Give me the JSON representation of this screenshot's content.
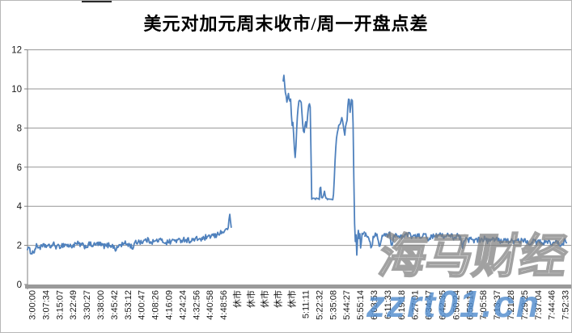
{
  "window": {
    "background": "#ffffff",
    "border_color": "#b7b7b7"
  },
  "title": "美元对加元周末收市/周一开盘点差",
  "watermarks": {
    "brand_cn": "海马财经",
    "brand_url": "zzrt01.cn"
  },
  "chart_data": {
    "type": "line",
    "title": "美元对加元周末收市/周一开盘点差",
    "xlabel": "",
    "ylabel": "",
    "ylim": [
      0,
      12
    ],
    "yticks": [
      0,
      2,
      4,
      6,
      8,
      10,
      12
    ],
    "grid": "horizontal-major",
    "legend_position": "none",
    "line_color": "#4f81bd",
    "gridline_color": "#969696",
    "axis_color": "#808080",
    "zero_axis_bar_color": "#9a9a9a",
    "tick_label_color": "#1a1a1a",
    "closed_market_label": "休市",
    "categories": [
      "3:00:00",
      "3:07:34",
      "3:15:07",
      "3:22:49",
      "3:30:27",
      "3:38:00",
      "3:45:42",
      "3:53:12",
      "4:00:47",
      "4:08:26",
      "4:16:09",
      "4:24:24",
      "4:32:56",
      "4:40:58",
      "4:48:56",
      "休市",
      "休市",
      "休市",
      "休市",
      "休市",
      "5:11:11",
      "5:22:32",
      "5:35:08",
      "5:44:27",
      "5:55:14",
      "6:03:53",
      "6:11:33",
      "6:19:18",
      "6:27:01",
      "6:34:47",
      "6:42:35",
      "6:50:24",
      "6:58:16",
      "7:05:58",
      "7:13:37",
      "7:21:28",
      "7:29:25",
      "7:37:04",
      "7:44:46",
      "7:52:33"
    ],
    "series": {
      "gap_note": "no data plotted over the five 休市 (market closed) categories",
      "segments": [
        {
          "noise": 0.14,
          "points": [
            [
              -0.33,
              1.9
            ],
            [
              -0.15,
              1.72
            ],
            [
              0.09,
              1.62
            ],
            [
              0.33,
              1.95
            ],
            [
              0.68,
              1.9
            ],
            [
              0.98,
              2.0
            ],
            [
              1.27,
              1.92
            ],
            [
              1.57,
              2.05
            ],
            [
              1.86,
              1.9
            ],
            [
              2.16,
              2.0
            ],
            [
              2.46,
              2.05
            ],
            [
              2.75,
              1.95
            ],
            [
              3.05,
              2.0
            ],
            [
              3.34,
              2.08
            ],
            [
              3.64,
              2.0
            ],
            [
              3.93,
              1.95
            ],
            [
              4.23,
              2.05
            ],
            [
              4.53,
              2.0
            ],
            [
              4.82,
              2.08
            ],
            [
              5.12,
              2.0
            ],
            [
              5.41,
              1.95
            ],
            [
              5.71,
              2.05
            ],
            [
              6.01,
              1.9
            ],
            [
              6.18,
              1.78
            ],
            [
              6.36,
              2.0
            ],
            [
              6.6,
              2.05
            ],
            [
              6.89,
              2.1
            ],
            [
              7.19,
              2.0
            ],
            [
              7.37,
              1.88
            ],
            [
              7.54,
              2.1
            ],
            [
              7.78,
              2.22
            ],
            [
              8.08,
              2.18
            ],
            [
              8.37,
              2.28
            ],
            [
              8.67,
              2.22
            ],
            [
              8.96,
              2.18
            ],
            [
              9.26,
              2.28
            ],
            [
              9.56,
              2.22
            ],
            [
              9.85,
              2.15
            ],
            [
              10.15,
              2.2
            ],
            [
              10.44,
              2.28
            ],
            [
              10.74,
              2.22
            ],
            [
              11.04,
              2.32
            ],
            [
              11.33,
              2.28
            ],
            [
              11.63,
              2.24
            ],
            [
              11.92,
              2.3
            ],
            [
              12.22,
              2.34
            ],
            [
              12.51,
              2.3
            ],
            [
              12.69,
              2.42
            ],
            [
              12.87,
              2.34
            ],
            [
              13.05,
              2.48
            ],
            [
              13.22,
              2.52
            ],
            [
              13.4,
              2.44
            ],
            [
              13.58,
              2.58
            ],
            [
              13.76,
              2.68
            ],
            [
              13.93,
              2.62
            ],
            [
              14.11,
              2.82
            ],
            [
              14.23,
              2.72
            ],
            [
              14.35,
              2.98
            ],
            [
              14.41,
              3.18
            ],
            [
              14.47,
              3.55
            ],
            [
              14.53,
              3.08
            ],
            [
              14.59,
              2.95
            ]
          ]
        },
        {
          "noise": 0.05,
          "points": [
            [
              18.37,
              10.45
            ],
            [
              18.43,
              10.7
            ],
            [
              18.49,
              10.2
            ],
            [
              18.52,
              9.6
            ],
            [
              18.55,
              10.05
            ],
            [
              18.61,
              9.5
            ],
            [
              18.67,
              9.15
            ],
            [
              18.73,
              9.9
            ],
            [
              18.79,
              9.6
            ],
            [
              18.85,
              9.35
            ],
            [
              18.91,
              9.6
            ],
            [
              18.96,
              8.8
            ],
            [
              19.02,
              8.1
            ],
            [
              19.08,
              8.35
            ],
            [
              19.14,
              7.6
            ],
            [
              19.2,
              6.9
            ],
            [
              19.26,
              6.45
            ],
            [
              19.32,
              7.3
            ],
            [
              19.38,
              8.3
            ],
            [
              19.44,
              8.8
            ],
            [
              19.5,
              9.35
            ],
            [
              19.56,
              9.5
            ],
            [
              19.62,
              9.3
            ],
            [
              19.67,
              9.45
            ],
            [
              19.73,
              8.9
            ],
            [
              19.79,
              8.3
            ],
            [
              19.85,
              7.9
            ],
            [
              19.91,
              7.75
            ],
            [
              19.97,
              8.1
            ],
            [
              20.03,
              8.35
            ],
            [
              20.09,
              8.0
            ],
            [
              20.15,
              8.6
            ],
            [
              20.21,
              9.0
            ],
            [
              20.27,
              9.3
            ],
            [
              20.33,
              9.25
            ],
            [
              20.38,
              8.8
            ],
            [
              20.44,
              4.3
            ],
            [
              20.5,
              4.35
            ],
            [
              20.56,
              4.4
            ],
            [
              20.68,
              4.35
            ],
            [
              20.8,
              4.4
            ],
            [
              20.92,
              4.35
            ],
            [
              21.04,
              4.4
            ],
            [
              21.09,
              5.4
            ],
            [
              21.15,
              4.45
            ],
            [
              21.27,
              4.4
            ],
            [
              21.39,
              4.8
            ],
            [
              21.45,
              4.5
            ],
            [
              21.57,
              4.4
            ],
            [
              21.69,
              4.35
            ],
            [
              21.8,
              4.4
            ],
            [
              21.92,
              4.35
            ],
            [
              22.04,
              4.4
            ],
            [
              22.1,
              5.2
            ],
            [
              22.16,
              6.2
            ],
            [
              22.22,
              7.0
            ],
            [
              22.28,
              7.5
            ],
            [
              22.34,
              7.8
            ],
            [
              22.4,
              8.0
            ],
            [
              22.46,
              8.2
            ],
            [
              22.51,
              8.1
            ],
            [
              22.57,
              8.3
            ],
            [
              22.63,
              8.45
            ],
            [
              22.69,
              8.55
            ],
            [
              22.75,
              8.2
            ],
            [
              22.81,
              7.9
            ],
            [
              22.87,
              7.6
            ],
            [
              22.93,
              8.0
            ],
            [
              22.99,
              8.2
            ],
            [
              23.05,
              8.4
            ],
            [
              23.11,
              9.3
            ],
            [
              23.17,
              9.5
            ],
            [
              23.22,
              9.45
            ],
            [
              23.28,
              8.6
            ],
            [
              23.34,
              9.4
            ],
            [
              23.4,
              9.5
            ],
            [
              23.46,
              9.35
            ],
            [
              23.52,
              6.6
            ],
            [
              23.58,
              3.4
            ],
            [
              23.64,
              2.1
            ],
            [
              23.7,
              2.6
            ],
            [
              23.76,
              1.5
            ],
            [
              23.82,
              2.4
            ],
            [
              23.88,
              2.9
            ],
            [
              23.93,
              2.3
            ],
            [
              23.99,
              2.6
            ],
            [
              24.05,
              1.6
            ],
            [
              24.11,
              2.5
            ],
            [
              24.17,
              2.7
            ],
            [
              24.23,
              2.5
            ],
            [
              24.29,
              2.8
            ],
            [
              24.35,
              2.55
            ]
          ]
        },
        {
          "noise": 0.13,
          "points": [
            [
              24.35,
              2.55
            ],
            [
              24.64,
              2.45
            ],
            [
              24.82,
              1.9
            ],
            [
              25.0,
              2.5
            ],
            [
              25.24,
              2.6
            ],
            [
              25.41,
              1.78
            ],
            [
              25.59,
              2.5
            ],
            [
              25.83,
              2.55
            ],
            [
              26.0,
              2.45
            ],
            [
              26.18,
              2.6
            ],
            [
              26.3,
              1.88
            ],
            [
              26.48,
              2.5
            ],
            [
              26.71,
              2.55
            ],
            [
              27.01,
              2.45
            ],
            [
              27.3,
              2.5
            ],
            [
              27.6,
              2.55
            ],
            [
              27.9,
              2.4
            ],
            [
              28.2,
              2.5
            ],
            [
              28.49,
              2.45
            ],
            [
              28.79,
              2.55
            ],
            [
              28.96,
              2.2
            ],
            [
              29.2,
              2.5
            ],
            [
              29.44,
              2.45
            ],
            [
              29.67,
              2.55
            ],
            [
              29.91,
              2.6
            ],
            [
              30.15,
              2.45
            ],
            [
              30.38,
              2.5
            ],
            [
              30.62,
              2.55
            ],
            [
              30.86,
              2.4
            ],
            [
              31.09,
              2.5
            ],
            [
              31.33,
              2.35
            ],
            [
              31.51,
              1.95
            ],
            [
              31.69,
              2.3
            ],
            [
              31.92,
              2.25
            ],
            [
              32.16,
              2.35
            ],
            [
              32.4,
              2.2
            ],
            [
              32.63,
              2.3
            ],
            [
              32.87,
              2.25
            ],
            [
              33.11,
              2.35
            ],
            [
              33.34,
              2.2
            ],
            [
              33.58,
              2.3
            ],
            [
              33.82,
              2.25
            ],
            [
              34.05,
              2.35
            ],
            [
              34.29,
              2.2
            ],
            [
              34.53,
              2.3
            ],
            [
              34.76,
              2.2
            ],
            [
              35.0,
              2.25
            ],
            [
              35.24,
              2.15
            ],
            [
              35.47,
              2.25
            ],
            [
              35.71,
              2.2
            ],
            [
              35.95,
              2.3
            ],
            [
              36.18,
              2.2
            ],
            [
              36.42,
              2.1
            ],
            [
              36.66,
              2.25
            ],
            [
              36.89,
              2.15
            ],
            [
              37.13,
              2.2
            ],
            [
              37.37,
              2.1
            ],
            [
              37.6,
              2.2
            ],
            [
              37.84,
              2.15
            ],
            [
              38.08,
              2.1
            ],
            [
              38.31,
              2.2
            ],
            [
              38.55,
              2.05
            ],
            [
              38.73,
              1.95
            ],
            [
              38.91,
              2.2
            ],
            [
              39.02,
              2.3
            ],
            [
              39.14,
              2.15
            ]
          ]
        }
      ]
    }
  }
}
